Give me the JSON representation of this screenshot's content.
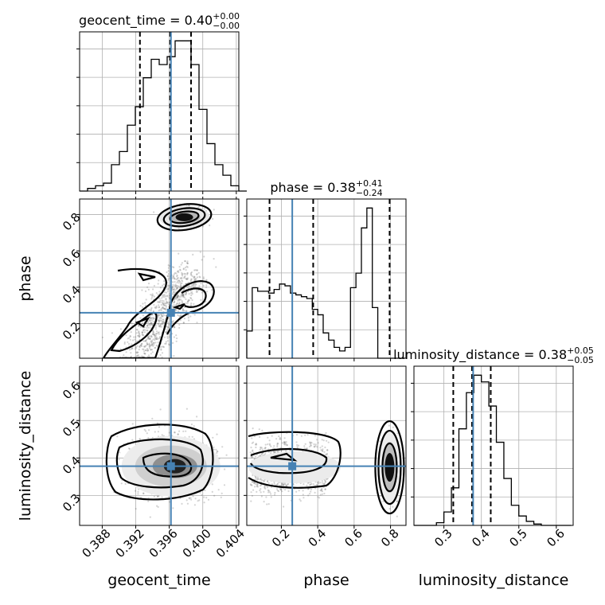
{
  "chart_data": {
    "type": "corner",
    "parameters": [
      "geocent_time",
      "phase",
      "luminosity_distance"
    ],
    "truths": {
      "geocent_time": 0.3962,
      "phase": 0.26,
      "luminosity_distance": 0.378
    },
    "titles": [
      {
        "param": "geocent_time",
        "base": "geocent_time = 0.40",
        "plus": "+0.00",
        "minus": "−0.00"
      },
      {
        "param": "phase",
        "base": "phase = 0.38",
        "plus": "+0.41",
        "minus": "−0.24"
      },
      {
        "param": "luminosity_distance",
        "base": "luminosity_distance = 0.38",
        "plus": "+0.05",
        "minus": "−0.05"
      }
    ],
    "axis_labels": {
      "geocent_time": "geocent_time",
      "phase": "phase",
      "luminosity_distance": "luminosity_distance"
    },
    "ranges": {
      "geocent_time": [
        0.3853,
        0.4043
      ],
      "phase": [
        0.01,
        0.885
      ],
      "luminosity_distance": [
        0.22,
        0.645
      ]
    },
    "ticks": {
      "geocent_time": [
        "0.388",
        "0.392",
        "0.396",
        "0.400",
        "0.404"
      ],
      "phase_x": [
        "0.2",
        "0.4",
        "0.6",
        "0.8"
      ],
      "phase_y": [
        "0.2",
        "0.4",
        "0.6",
        "0.8"
      ],
      "luminosity_distance_x": [
        "0.3",
        "0.4",
        "0.5",
        "0.6"
      ],
      "luminosity_distance_y": [
        "0.3",
        "0.4",
        "0.5",
        "0.6"
      ]
    },
    "quantiles": {
      "geocent_time": [
        0.3925,
        0.3961,
        0.3986
      ],
      "phase": [
        0.135,
        0.375,
        0.795
      ],
      "luminosity_distance": [
        0.325,
        0.375,
        0.425
      ]
    },
    "histograms": {
      "geocent_time": {
        "edges_start": 0.3853,
        "bin_width": 0.00095,
        "counts": [
          0,
          1,
          2,
          3,
          10,
          15,
          25,
          32,
          43,
          50,
          48,
          51,
          57,
          57,
          48,
          31,
          18,
          10,
          6,
          2,
          0
        ]
      },
      "phase": {
        "edges_start": 0.01,
        "bin_width": 0.03,
        "counts": [
          15,
          39,
          37,
          37,
          36,
          38,
          41,
          40,
          36,
          35,
          34,
          33,
          27,
          24,
          14,
          10,
          6,
          4,
          6,
          39,
          47,
          72,
          83,
          28,
          0,
          0,
          0,
          0,
          0
        ]
      },
      "luminosity_distance": {
        "edges_start": 0.22,
        "bin_width": 0.02,
        "counts": [
          0,
          0,
          0,
          2,
          10,
          28,
          72,
          99,
          112,
          107,
          89,
          62,
          35,
          15,
          7,
          3,
          1,
          0,
          0,
          0,
          0
        ]
      }
    }
  }
}
